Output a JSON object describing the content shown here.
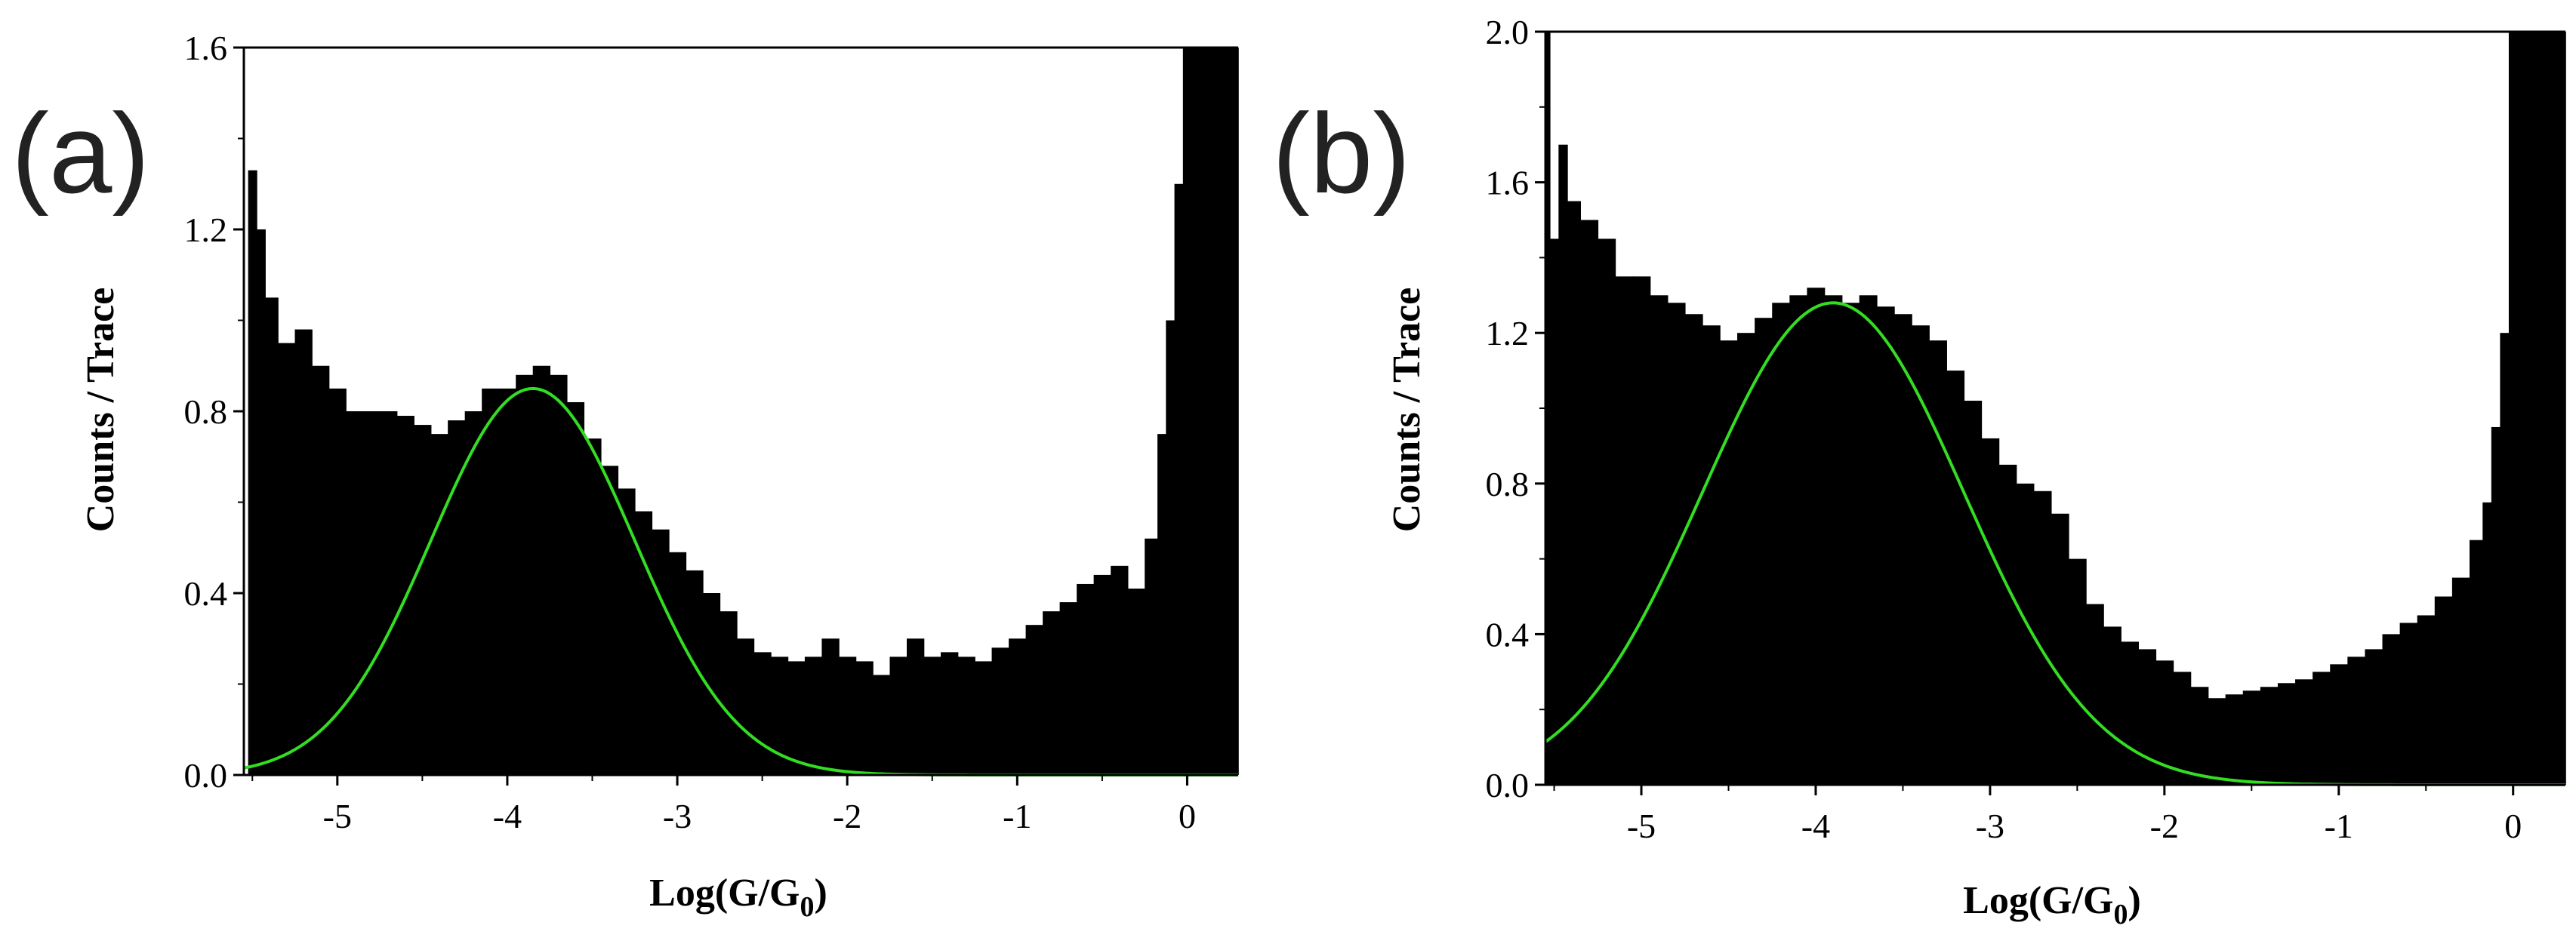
{
  "chart_data": [
    {
      "type": "bar",
      "panel_label": "(a)",
      "xlabel": "Log(G/G",
      "xlabel_sub": "0",
      "xlabel_close": ")",
      "ylabel": "Counts / Trace",
      "xlim": [
        -5.55,
        0.3
      ],
      "ylim": [
        0,
        1.6
      ],
      "x_ticks": [
        -5,
        -4,
        -3,
        -2,
        -1,
        0
      ],
      "x_tick_labels": [
        "-5",
        "-4",
        "-3",
        "-2",
        "-1",
        "0"
      ],
      "y_ticks": [
        0.0,
        0.4,
        0.8,
        1.2,
        1.6
      ],
      "y_tick_labels": [
        "0.0",
        "0.4",
        "0.8",
        "1.2",
        "1.6"
      ],
      "grid": false,
      "histogram_color": "#000000",
      "fit_color": "#33dd22",
      "histogram": {
        "x": [
          -5.5,
          -5.45,
          -5.4,
          -5.3,
          -5.2,
          -5.1,
          -5.0,
          -4.9,
          -4.8,
          -4.7,
          -4.6,
          -4.5,
          -4.4,
          -4.3,
          -4.2,
          -4.1,
          -4.0,
          -3.9,
          -3.8,
          -3.7,
          -3.6,
          -3.5,
          -3.4,
          -3.3,
          -3.2,
          -3.1,
          -3.0,
          -2.9,
          -2.8,
          -2.7,
          -2.6,
          -2.5,
          -2.4,
          -2.3,
          -2.2,
          -2.1,
          -2.0,
          -1.9,
          -1.8,
          -1.7,
          -1.6,
          -1.5,
          -1.4,
          -1.3,
          -1.2,
          -1.1,
          -1.0,
          -0.9,
          -0.8,
          -0.7,
          -0.6,
          -0.5,
          -0.4,
          -0.3,
          -0.2,
          -0.15,
          -0.1,
          -0.05,
          0.0,
          0.1,
          0.2,
          0.3
        ],
        "values": [
          1.33,
          1.2,
          1.05,
          0.95,
          0.98,
          0.9,
          0.85,
          0.8,
          0.8,
          0.8,
          0.79,
          0.77,
          0.75,
          0.78,
          0.8,
          0.85,
          0.85,
          0.88,
          0.9,
          0.88,
          0.82,
          0.74,
          0.68,
          0.63,
          0.58,
          0.54,
          0.49,
          0.45,
          0.4,
          0.36,
          0.3,
          0.27,
          0.26,
          0.25,
          0.26,
          0.3,
          0.26,
          0.25,
          0.22,
          0.26,
          0.3,
          0.26,
          0.27,
          0.26,
          0.25,
          0.28,
          0.3,
          0.33,
          0.36,
          0.38,
          0.42,
          0.44,
          0.46,
          0.41,
          0.52,
          0.75,
          1.0,
          1.3,
          1.6,
          1.6,
          1.6,
          1.6
        ]
      },
      "gaussian_fit": {
        "amplitude": 0.85,
        "center": -3.85,
        "sigma": 0.6
      }
    },
    {
      "type": "bar",
      "panel_label": "(b)",
      "xlabel": "Log(G/G",
      "xlabel_sub": "0",
      "xlabel_close": ")",
      "ylabel": "Counts / Trace",
      "xlim": [
        -5.55,
        0.3
      ],
      "ylim": [
        0,
        2.0
      ],
      "x_ticks": [
        -5,
        -4,
        -3,
        -2,
        -1,
        0
      ],
      "x_tick_labels": [
        "-5",
        "-4",
        "-3",
        "-2",
        "-1",
        "0"
      ],
      "y_ticks": [
        0.0,
        0.4,
        0.8,
        1.2,
        1.6,
        2.0
      ],
      "y_tick_labels": [
        "0.0",
        "0.4",
        "0.8",
        "1.2",
        "1.6",
        "2.0"
      ],
      "grid": false,
      "histogram_color": "#000000",
      "fit_color": "#33dd22",
      "histogram": {
        "x": [
          -5.55,
          -5.5,
          -5.45,
          -5.4,
          -5.3,
          -5.2,
          -5.1,
          -5.0,
          -4.9,
          -4.8,
          -4.7,
          -4.6,
          -4.5,
          -4.4,
          -4.3,
          -4.2,
          -4.1,
          -4.0,
          -3.9,
          -3.8,
          -3.7,
          -3.6,
          -3.5,
          -3.4,
          -3.3,
          -3.2,
          -3.1,
          -3.0,
          -2.9,
          -2.8,
          -2.7,
          -2.6,
          -2.5,
          -2.4,
          -2.3,
          -2.2,
          -2.1,
          -2.0,
          -1.9,
          -1.8,
          -1.7,
          -1.6,
          -1.5,
          -1.4,
          -1.3,
          -1.2,
          -1.1,
          -1.0,
          -0.9,
          -0.8,
          -0.7,
          -0.6,
          -0.5,
          -0.4,
          -0.3,
          -0.2,
          -0.15,
          -0.1,
          -0.05,
          0.0,
          0.1,
          0.2,
          0.3
        ],
        "values": [
          2.0,
          1.45,
          1.7,
          1.55,
          1.5,
          1.45,
          1.35,
          1.35,
          1.3,
          1.28,
          1.25,
          1.22,
          1.18,
          1.2,
          1.24,
          1.28,
          1.3,
          1.32,
          1.3,
          1.28,
          1.3,
          1.27,
          1.25,
          1.22,
          1.18,
          1.1,
          1.02,
          0.92,
          0.85,
          0.8,
          0.78,
          0.72,
          0.6,
          0.48,
          0.42,
          0.38,
          0.36,
          0.33,
          0.3,
          0.26,
          0.23,
          0.24,
          0.25,
          0.26,
          0.27,
          0.28,
          0.3,
          0.32,
          0.34,
          0.36,
          0.4,
          0.43,
          0.45,
          0.5,
          0.55,
          0.65,
          0.75,
          0.95,
          1.2,
          2.0,
          2.0,
          2.0,
          2.0
        ]
      },
      "gaussian_fit": {
        "amplitude": 1.28,
        "center": -3.9,
        "sigma": 0.75
      }
    }
  ]
}
